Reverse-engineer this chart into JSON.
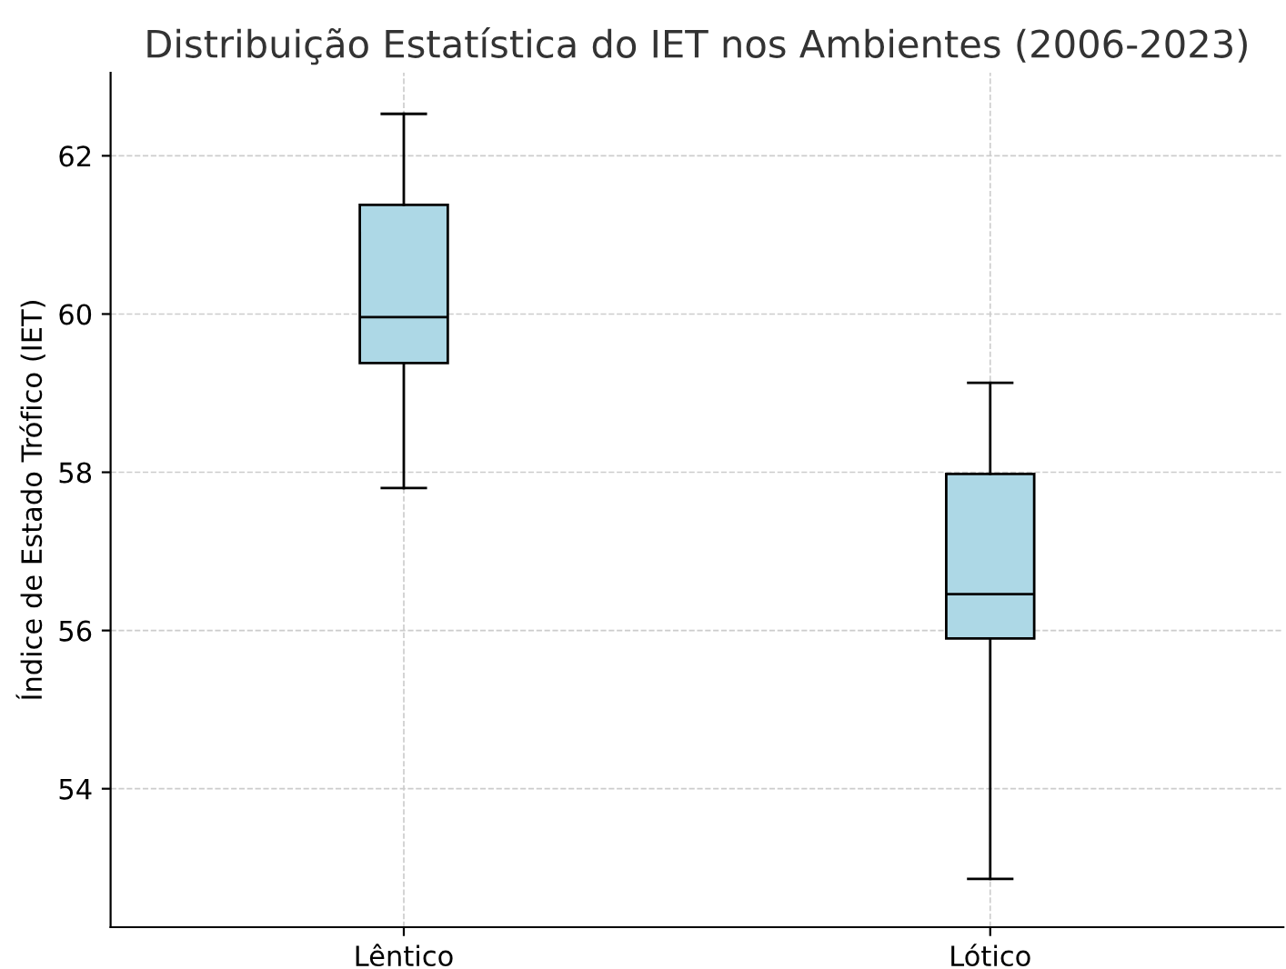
{
  "chart_data": {
    "type": "box",
    "title": "Distribuição Estatística do IET nos Ambientes (2006-2023)",
    "ylabel": "Índice de Estado Trófico (IET)",
    "categories": [
      "Lêntico",
      "Lótico"
    ],
    "boxes": [
      {
        "low": 57.8,
        "q1": 59.38,
        "median": 59.96,
        "q3": 61.38,
        "high": 62.53
      },
      {
        "low": 52.86,
        "q1": 55.9,
        "median": 56.46,
        "q3": 57.98,
        "high": 59.13
      }
    ],
    "color": "#add8e6",
    "ylim": [
      52.25,
      63.05
    ],
    "yticks": [
      54,
      56,
      58,
      60,
      62
    ],
    "grid": true
  }
}
